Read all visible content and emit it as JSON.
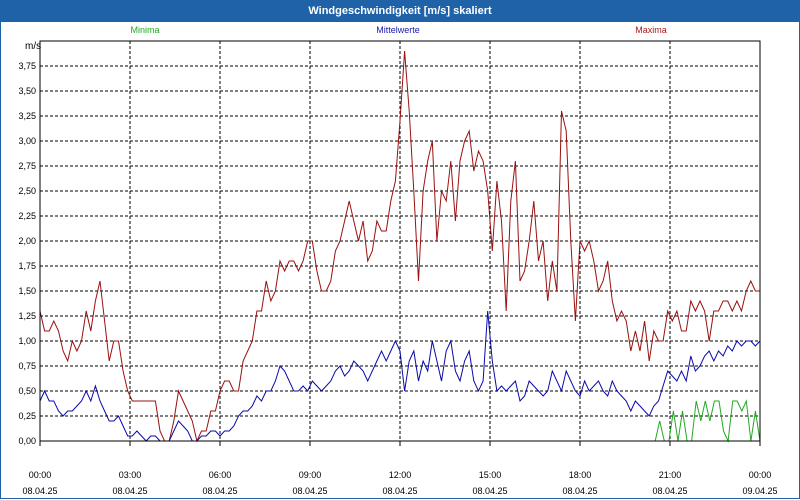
{
  "window": {
    "title": "Windgeschwindigkeit [m/s] skaliert"
  },
  "chart_data": {
    "type": "line",
    "ylabel": "m/s",
    "ylim": [
      0,
      4.0
    ],
    "yticks": [
      "0,00",
      "0,25",
      "0,50",
      "0,75",
      "1,00",
      "1,25",
      "1,50",
      "1,75",
      "2,00",
      "2,25",
      "2,50",
      "2,75",
      "3,00",
      "3,25",
      "3,50",
      "3,75"
    ],
    "xlim": [
      0,
      24
    ],
    "xticks": [
      {
        "time": "00:00",
        "date": "08.04.25"
      },
      {
        "time": "03:00",
        "date": "08.04.25"
      },
      {
        "time": "06:00",
        "date": "08.04.25"
      },
      {
        "time": "09:00",
        "date": "08.04.25"
      },
      {
        "time": "12:00",
        "date": "08.04.25"
      },
      {
        "time": "15:00",
        "date": "08.04.25"
      },
      {
        "time": "18:00",
        "date": "08.04.25"
      },
      {
        "time": "21:00",
        "date": "08.04.25"
      },
      {
        "time": "00:00",
        "date": "09.04.25"
      }
    ],
    "legend": [
      {
        "name": "Minima",
        "color": "#22aa22"
      },
      {
        "name": "Mittelwerte",
        "color": "#1a1aaa"
      },
      {
        "name": "Maxima",
        "color": "#aa1a1a"
      }
    ],
    "series": [
      {
        "name": "Maxima",
        "color": "#9b1010",
        "values": [
          1.3,
          1.1,
          1.1,
          1.2,
          1.1,
          0.9,
          0.8,
          1.0,
          0.9,
          1.0,
          1.3,
          1.1,
          1.4,
          1.6,
          1.2,
          0.8,
          1.0,
          1.0,
          0.7,
          0.5,
          0.4,
          0.4,
          0.4,
          0.4,
          0.4,
          0.4,
          0.1,
          0.0,
          0.0,
          0.2,
          0.5,
          0.4,
          0.3,
          0.2,
          0.0,
          0.1,
          0.1,
          0.3,
          0.3,
          0.5,
          0.6,
          0.6,
          0.5,
          0.5,
          0.8,
          0.9,
          1.0,
          1.3,
          1.3,
          1.6,
          1.4,
          1.5,
          1.8,
          1.7,
          1.8,
          1.8,
          1.7,
          1.8,
          2.0,
          2.0,
          1.7,
          1.5,
          1.5,
          1.6,
          1.9,
          2.0,
          2.2,
          2.4,
          2.2,
          2.0,
          2.2,
          1.8,
          1.9,
          2.2,
          2.1,
          2.1,
          2.4,
          2.6,
          3.2,
          3.9,
          3.3,
          2.5,
          1.6,
          2.5,
          2.8,
          3.0,
          2.0,
          2.5,
          2.4,
          2.8,
          2.2,
          2.8,
          3.0,
          3.1,
          2.7,
          2.9,
          2.8,
          2.5,
          1.9,
          2.6,
          2.2,
          1.3,
          2.4,
          2.8,
          1.6,
          1.7,
          2.0,
          2.4,
          1.8,
          2.0,
          1.4,
          1.8,
          1.5,
          3.3,
          3.1,
          2.0,
          1.2,
          2.0,
          1.9,
          2.0,
          1.8,
          1.5,
          1.6,
          1.8,
          1.4,
          1.2,
          1.3,
          1.2,
          0.9,
          1.1,
          0.9,
          1.2,
          0.8,
          1.1,
          1.0,
          1.0,
          1.3,
          1.2,
          1.3,
          1.1,
          1.1,
          1.4,
          1.3,
          1.4,
          1.3,
          1.0,
          1.3,
          1.3,
          1.4,
          1.4,
          1.3,
          1.4,
          1.3,
          1.5,
          1.6,
          1.5,
          1.5
        ]
      },
      {
        "name": "Mittelwerte",
        "color": "#0a0aaa",
        "values": [
          0.4,
          0.5,
          0.4,
          0.4,
          0.3,
          0.25,
          0.3,
          0.3,
          0.35,
          0.4,
          0.5,
          0.4,
          0.55,
          0.4,
          0.3,
          0.2,
          0.2,
          0.25,
          0.15,
          0.05,
          0.05,
          0.1,
          0.05,
          0.0,
          0.05,
          0.05,
          0.0,
          0.0,
          0.0,
          0.1,
          0.2,
          0.15,
          0.1,
          0.0,
          0.0,
          0.05,
          0.05,
          0.1,
          0.1,
          0.05,
          0.1,
          0.1,
          0.15,
          0.25,
          0.3,
          0.3,
          0.35,
          0.45,
          0.4,
          0.5,
          0.5,
          0.6,
          0.75,
          0.7,
          0.6,
          0.5,
          0.5,
          0.55,
          0.5,
          0.6,
          0.55,
          0.5,
          0.55,
          0.6,
          0.7,
          0.75,
          0.65,
          0.7,
          0.8,
          0.75,
          0.7,
          0.6,
          0.7,
          0.8,
          0.9,
          0.8,
          0.9,
          1.0,
          0.9,
          0.5,
          0.8,
          0.9,
          0.6,
          0.8,
          0.7,
          1.0,
          0.8,
          0.6,
          0.9,
          1.0,
          0.7,
          0.6,
          0.8,
          0.9,
          0.6,
          0.5,
          0.6,
          1.3,
          0.8,
          0.5,
          0.55,
          0.5,
          0.55,
          0.6,
          0.4,
          0.45,
          0.6,
          0.55,
          0.5,
          0.45,
          0.5,
          0.7,
          0.6,
          0.5,
          0.7,
          0.6,
          0.5,
          0.45,
          0.6,
          0.5,
          0.55,
          0.6,
          0.5,
          0.45,
          0.6,
          0.5,
          0.45,
          0.4,
          0.3,
          0.4,
          0.35,
          0.3,
          0.25,
          0.35,
          0.4,
          0.55,
          0.7,
          0.65,
          0.6,
          0.7,
          0.6,
          0.85,
          0.7,
          0.75,
          0.85,
          0.9,
          0.8,
          0.9,
          0.85,
          0.95,
          0.9,
          1.0,
          0.95,
          1.0,
          1.0,
          0.95,
          1.0
        ]
      },
      {
        "name": "Minima",
        "color": "#22aa22",
        "values": [
          0,
          0,
          0,
          0,
          0,
          0,
          0,
          0,
          0,
          0,
          0,
          0,
          0,
          0,
          0,
          0,
          0,
          0,
          0,
          0,
          0,
          0,
          0,
          0,
          0,
          0,
          0,
          0,
          0,
          0,
          0,
          0,
          0,
          0,
          0,
          0,
          0,
          0,
          0,
          0,
          0,
          0,
          0,
          0,
          0,
          0,
          0,
          0,
          0,
          0,
          0,
          0,
          0,
          0,
          0,
          0,
          0,
          0,
          0,
          0,
          0,
          0,
          0,
          0,
          0,
          0,
          0,
          0,
          0,
          0,
          0,
          0,
          0,
          0,
          0,
          0,
          0,
          0,
          0,
          0,
          0,
          0,
          0,
          0,
          0,
          0,
          0,
          0,
          0,
          0,
          0,
          0,
          0,
          0,
          0,
          0,
          0,
          0,
          0,
          0,
          0,
          0,
          0,
          0,
          0,
          0,
          0,
          0,
          0,
          0,
          0,
          0,
          0,
          0,
          0,
          0,
          0,
          0,
          0,
          0,
          0,
          0,
          0,
          0,
          0,
          0,
          0,
          0,
          0,
          0,
          0,
          0,
          0,
          0,
          0,
          0,
          0.2,
          0,
          0,
          0.3,
          0,
          0.3,
          0,
          0,
          0.4,
          0.2,
          0.4,
          0.2,
          0.4,
          0.4,
          0.1,
          0,
          0.4,
          0.4,
          0.3,
          0.4,
          0,
          0.3,
          0
        ]
      }
    ]
  }
}
